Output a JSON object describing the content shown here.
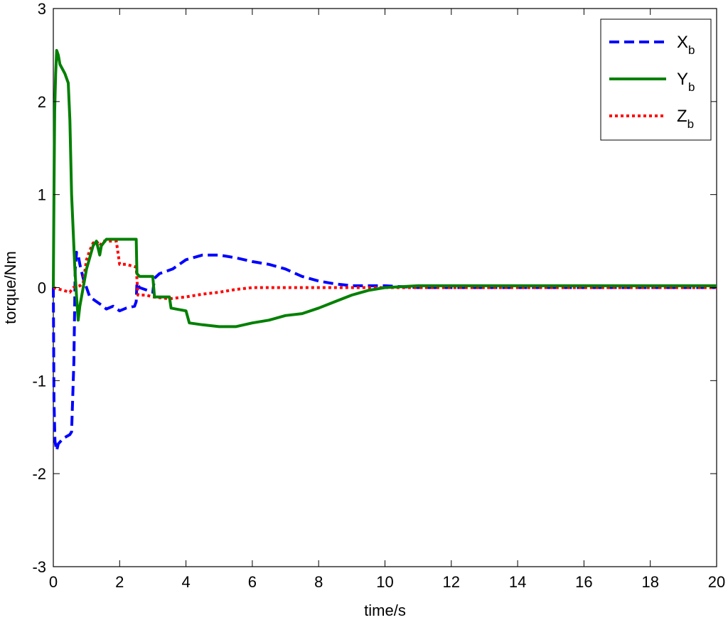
{
  "chart_data": {
    "type": "line",
    "xlabel": "time/s",
    "ylabel": "torque/Nm",
    "xlim": [
      0,
      20
    ],
    "ylim": [
      -3,
      3
    ],
    "x_ticks": [
      0,
      2,
      4,
      6,
      8,
      10,
      12,
      14,
      16,
      18,
      20
    ],
    "y_ticks": [
      -3,
      -2,
      -1,
      0,
      1,
      2,
      3
    ],
    "grid": false,
    "legend_position": "top-right",
    "series": [
      {
        "name": "X",
        "name_subscript": "b",
        "color": "#0000ff",
        "style": "dashed",
        "points": [
          [
            0,
            0
          ],
          [
            0.02,
            -1.2
          ],
          [
            0.05,
            -1.65
          ],
          [
            0.1,
            -1.75
          ],
          [
            0.15,
            -1.68
          ],
          [
            0.3,
            -1.62
          ],
          [
            0.5,
            -1.58
          ],
          [
            0.55,
            -1.55
          ],
          [
            0.62,
            -0.8
          ],
          [
            0.66,
            0.2
          ],
          [
            0.7,
            0.38
          ],
          [
            0.75,
            0.35
          ],
          [
            0.8,
            0.25
          ],
          [
            0.9,
            0.1
          ],
          [
            1.0,
            0.0
          ],
          [
            1.1,
            -0.1
          ],
          [
            1.3,
            -0.15
          ],
          [
            1.5,
            -0.2
          ],
          [
            1.6,
            -0.23
          ],
          [
            1.8,
            -0.2
          ],
          [
            2.0,
            -0.25
          ],
          [
            2.2,
            -0.22
          ],
          [
            2.45,
            -0.2
          ],
          [
            2.5,
            -0.15
          ],
          [
            2.52,
            0.05
          ],
          [
            2.6,
            0.0
          ],
          [
            3.0,
            -0.05
          ],
          [
            3.05,
            0.1
          ],
          [
            3.2,
            0.15
          ],
          [
            3.6,
            0.2
          ],
          [
            4.0,
            0.3
          ],
          [
            4.5,
            0.35
          ],
          [
            5.0,
            0.35
          ],
          [
            5.5,
            0.32
          ],
          [
            6.0,
            0.28
          ],
          [
            6.5,
            0.25
          ],
          [
            7.0,
            0.2
          ],
          [
            7.5,
            0.12
          ],
          [
            8.0,
            0.07
          ],
          [
            8.5,
            0.04
          ],
          [
            9.0,
            0.02
          ],
          [
            10.0,
            0.02
          ],
          [
            11.0,
            0.0
          ],
          [
            20.0,
            0.0
          ]
        ]
      },
      {
        "name": "Y",
        "name_subscript": "b",
        "color": "#008000",
        "style": "solid",
        "points": [
          [
            0,
            0
          ],
          [
            0.02,
            1.0
          ],
          [
            0.04,
            1.9
          ],
          [
            0.07,
            2.3
          ],
          [
            0.1,
            2.55
          ],
          [
            0.15,
            2.5
          ],
          [
            0.2,
            2.4
          ],
          [
            0.35,
            2.3
          ],
          [
            0.45,
            2.2
          ],
          [
            0.5,
            1.8
          ],
          [
            0.55,
            1.0
          ],
          [
            0.6,
            0.6
          ],
          [
            0.65,
            0.2
          ],
          [
            0.7,
            -0.1
          ],
          [
            0.75,
            -0.35
          ],
          [
            0.8,
            -0.2
          ],
          [
            0.9,
            0.0
          ],
          [
            1.0,
            0.2
          ],
          [
            1.2,
            0.45
          ],
          [
            1.3,
            0.5
          ],
          [
            1.4,
            0.35
          ],
          [
            1.45,
            0.45
          ],
          [
            1.6,
            0.52
          ],
          [
            2.0,
            0.52
          ],
          [
            2.5,
            0.52
          ],
          [
            2.52,
            0.15
          ],
          [
            2.6,
            0.12
          ],
          [
            3.0,
            0.12
          ],
          [
            3.05,
            -0.1
          ],
          [
            3.5,
            -0.1
          ],
          [
            3.55,
            -0.22
          ],
          [
            4.0,
            -0.25
          ],
          [
            4.1,
            -0.38
          ],
          [
            4.5,
            -0.4
          ],
          [
            5.0,
            -0.42
          ],
          [
            5.5,
            -0.42
          ],
          [
            6.0,
            -0.38
          ],
          [
            6.5,
            -0.35
          ],
          [
            7.0,
            -0.3
          ],
          [
            7.5,
            -0.28
          ],
          [
            8.0,
            -0.22
          ],
          [
            8.5,
            -0.15
          ],
          [
            9.0,
            -0.08
          ],
          [
            9.5,
            -0.03
          ],
          [
            10.0,
            0.0
          ],
          [
            11.0,
            0.02
          ],
          [
            20.0,
            0.02
          ]
        ]
      },
      {
        "name": "Z",
        "name_subscript": "b",
        "color": "#ff0000",
        "style": "dotted",
        "points": [
          [
            0,
            0
          ],
          [
            0.3,
            -0.03
          ],
          [
            0.5,
            -0.05
          ],
          [
            0.6,
            0.0
          ],
          [
            0.8,
            0.02
          ],
          [
            0.9,
            0.05
          ],
          [
            1.0,
            0.3
          ],
          [
            1.1,
            0.4
          ],
          [
            1.2,
            0.48
          ],
          [
            1.3,
            0.5
          ],
          [
            1.4,
            0.45
          ],
          [
            1.5,
            0.5
          ],
          [
            1.7,
            0.5
          ],
          [
            1.9,
            0.5
          ],
          [
            2.0,
            0.25
          ],
          [
            2.2,
            0.25
          ],
          [
            2.5,
            0.22
          ],
          [
            2.55,
            -0.08
          ],
          [
            2.8,
            -0.08
          ],
          [
            3.0,
            -0.1
          ],
          [
            3.5,
            -0.12
          ],
          [
            4.0,
            -0.1
          ],
          [
            4.5,
            -0.07
          ],
          [
            5.0,
            -0.05
          ],
          [
            5.5,
            -0.02
          ],
          [
            6.0,
            0.0
          ],
          [
            7.0,
            0.0
          ],
          [
            8.0,
            0.0
          ],
          [
            20.0,
            0.0
          ]
        ]
      }
    ]
  }
}
